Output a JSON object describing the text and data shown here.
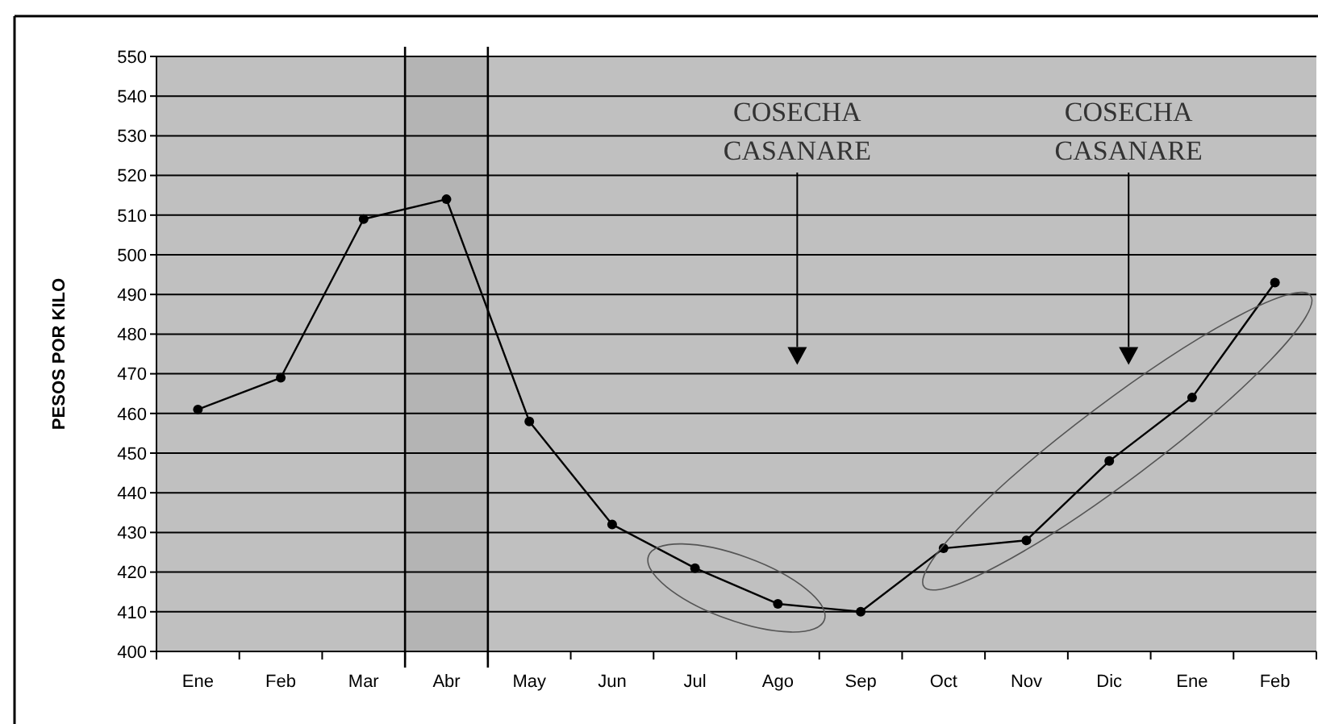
{
  "chart_data": {
    "type": "line",
    "ylabel": "PESOS POR KILO",
    "categories": [
      "Ene",
      "Feb",
      "Mar",
      "Abr",
      "May",
      "Jun",
      "Jul",
      "Ago",
      "Sep",
      "Oct",
      "Nov",
      "Dic",
      "Ene",
      "Feb"
    ],
    "series": [
      {
        "color": "#000000",
        "values": [
          461,
          469,
          509,
          514,
          458,
          432,
          421,
          412,
          410,
          426,
          428,
          448,
          464,
          493
        ]
      }
    ],
    "ylim": [
      400,
      550
    ],
    "yticks": [
      400,
      410,
      420,
      430,
      440,
      450,
      460,
      470,
      480,
      490,
      500,
      510,
      520,
      530,
      540,
      550
    ],
    "grid": "y",
    "marker": "circle",
    "line_style": "solid",
    "bands": [
      {
        "axis": "x",
        "from": "Abr",
        "to": "Abr",
        "color": "#000000"
      }
    ],
    "annotations": [
      "COSECHA CASANARE",
      "COSECHA CASANARE"
    ]
  }
}
